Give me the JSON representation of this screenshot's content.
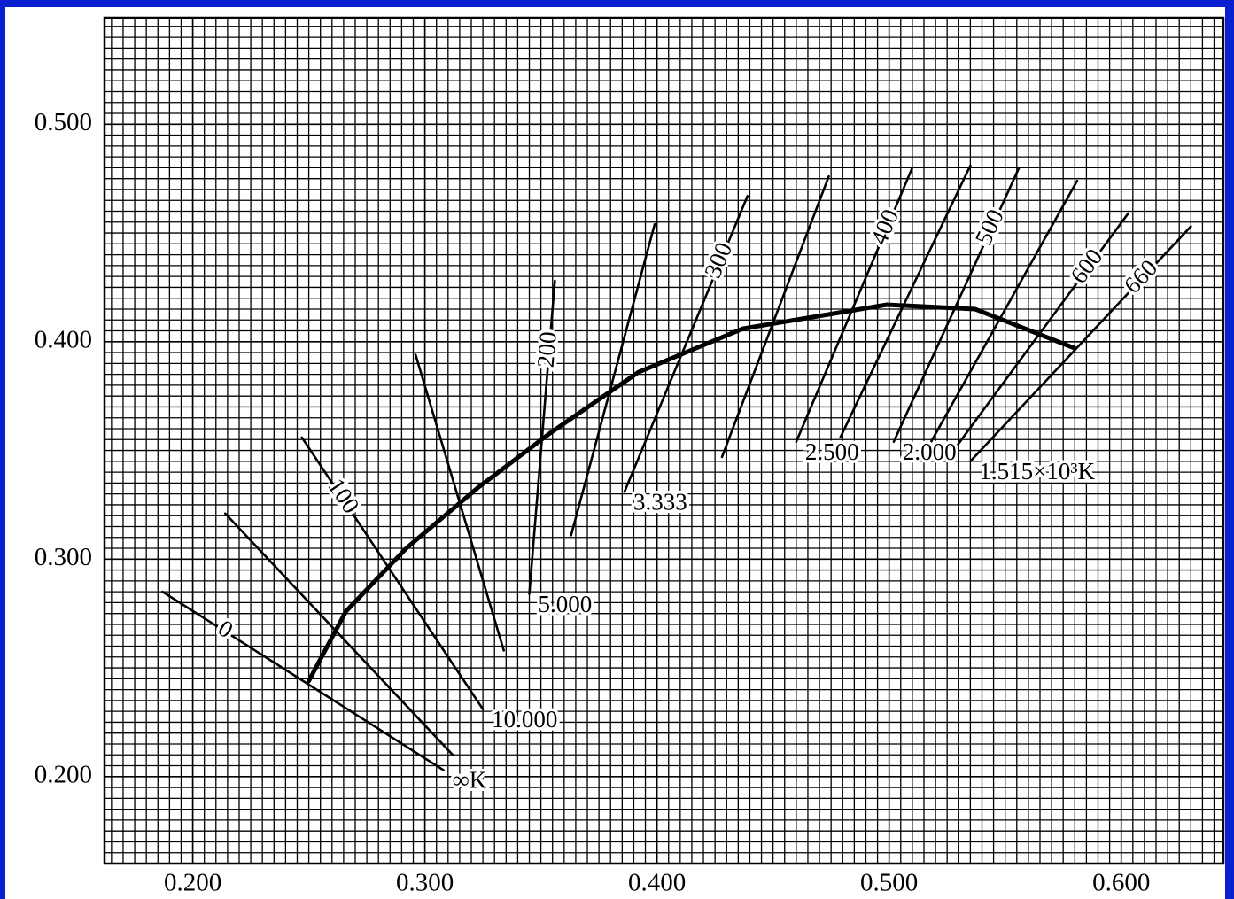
{
  "chart_data": {
    "type": "line",
    "xlim": [
      0.162,
      0.644
    ],
    "ylim": [
      0.16,
      0.549
    ],
    "xticks": [
      {
        "value": 0.2,
        "label": "0.200"
      },
      {
        "value": 0.3,
        "label": "0.300"
      },
      {
        "value": 0.4,
        "label": "0.400"
      },
      {
        "value": 0.5,
        "label": "0.500"
      },
      {
        "value": 0.6,
        "label": "0.600"
      }
    ],
    "yticks": [
      {
        "value": 0.2,
        "label": "0.200"
      },
      {
        "value": 0.3,
        "label": "0.300"
      },
      {
        "value": 0.4,
        "label": "0.400"
      },
      {
        "value": 0.5,
        "label": "0.500"
      }
    ],
    "grid": true,
    "minor_grid_step": 0.005,
    "color": "#000000",
    "locus": {
      "x": [
        0.25,
        0.266,
        0.292,
        0.323,
        0.354,
        0.392,
        0.437,
        0.499,
        0.537,
        0.58
      ],
      "y": [
        0.244,
        0.276,
        0.305,
        0.333,
        0.358,
        0.386,
        0.406,
        0.417,
        0.415,
        0.397
      ]
    },
    "lines": [
      {
        "x": [
          0.187,
          0.308
        ],
        "y": [
          0.285,
          0.203
        ],
        "top_label": "0",
        "bottom_label": "∞K"
      },
      {
        "x": [
          0.214,
          0.312
        ],
        "y": [
          0.321,
          0.21
        ]
      },
      {
        "x": [
          0.247,
          0.325
        ],
        "y": [
          0.356,
          0.231
        ],
        "top_label": "100",
        "bottom_label": "10.000"
      },
      {
        "x": [
          0.296,
          0.334
        ],
        "y": [
          0.394,
          0.258
        ]
      },
      {
        "x": [
          0.356,
          0.345
        ],
        "y": [
          0.428,
          0.284
        ],
        "top_label": "200",
        "bottom_label": "5.000"
      },
      {
        "x": [
          0.399,
          0.363
        ],
        "y": [
          0.454,
          0.311
        ]
      },
      {
        "x": [
          0.439,
          0.386
        ],
        "y": [
          0.467,
          0.331
        ],
        "top_label": "300",
        "bottom_label": "3.333"
      },
      {
        "x": [
          0.474,
          0.428
        ],
        "y": [
          0.476,
          0.347
        ]
      },
      {
        "x": [
          0.51,
          0.46
        ],
        "y": [
          0.48,
          0.354
        ],
        "top_label": "400",
        "bottom_label": "2.500"
      },
      {
        "x": [
          0.535,
          0.479
        ],
        "y": [
          0.481,
          0.356
        ]
      },
      {
        "x": [
          0.556,
          0.502
        ],
        "y": [
          0.48,
          0.354
        ],
        "top_label": "500",
        "bottom_label": "2.000"
      },
      {
        "x": [
          0.581,
          0.516
        ],
        "y": [
          0.474,
          0.35
        ]
      },
      {
        "x": [
          0.603,
          0.525
        ],
        "y": [
          0.459,
          0.346
        ],
        "top_label": "600"
      },
      {
        "x": [
          0.63,
          0.535
        ],
        "y": [
          0.453,
          0.345
        ],
        "top_label": "660",
        "bottom_label": "1.515×10³K"
      }
    ]
  }
}
